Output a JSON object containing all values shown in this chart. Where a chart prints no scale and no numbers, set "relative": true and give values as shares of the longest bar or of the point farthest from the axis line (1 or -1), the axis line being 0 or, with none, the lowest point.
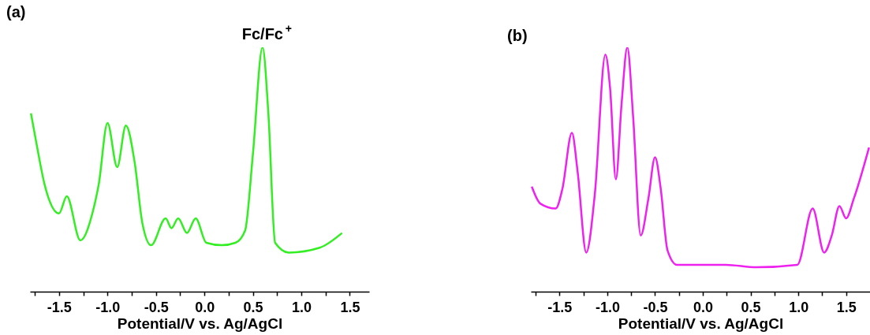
{
  "chart_data": [
    {
      "type": "line",
      "title": "(a)",
      "xlabel": "Potential/V vs. Ag/AgCl",
      "relative": true,
      "xlim": [
        -1.8,
        1.7
      ],
      "xticks": [
        {
          "value": -1.75,
          "label": null
        },
        {
          "value": -1.5,
          "label": "-1.5"
        },
        {
          "value": -1.25,
          "label": null
        },
        {
          "value": -1,
          "label": "-1.0"
        },
        {
          "value": -0.75,
          "label": null
        },
        {
          "value": -0.5,
          "label": "-0.5"
        },
        {
          "value": -0.25,
          "label": null
        },
        {
          "value": 0,
          "label": "0.0"
        },
        {
          "value": 0.25,
          "label": null
        },
        {
          "value": 0.5,
          "label": "0.5"
        },
        {
          "value": 0.75,
          "label": null
        },
        {
          "value": 1,
          "label": "1.0"
        },
        {
          "value": 1.25,
          "label": null
        },
        {
          "value": 1.5,
          "label": "1.5"
        }
      ],
      "annotations": [
        {
          "text": "Fc/Fc$^{+}$",
          "x": 0.6,
          "y": 1.0
        }
      ],
      "series": [
        {
          "color": "#33ee22",
          "x": [
            -1.79,
            -1.73,
            -1.65,
            -1.5,
            -1.42,
            -1.28,
            -1.15,
            -1.09,
            -1.0,
            -0.9,
            -0.81,
            -0.72,
            -0.64,
            -0.55,
            -0.4,
            -0.34,
            -0.27,
            -0.18,
            -0.09,
            0.02,
            0.18,
            0.32,
            0.42,
            0.5,
            0.6,
            0.66,
            0.73,
            0.87,
            1.19,
            1.42
          ],
          "values": [
            0.73,
            0.6,
            0.44,
            0.32,
            0.39,
            0.21,
            0.33,
            0.44,
            0.69,
            0.51,
            0.68,
            0.53,
            0.28,
            0.19,
            0.3,
            0.26,
            0.3,
            0.24,
            0.3,
            0.2,
            0.19,
            0.2,
            0.25,
            0.56,
            1.0,
            0.73,
            0.2,
            0.16,
            0.18,
            0.24
          ]
        }
      ]
    },
    {
      "type": "line",
      "title": "(b)",
      "xlabel": "Potential/V vs. Ag/AgCl",
      "relative": true,
      "xlim": [
        -1.8,
        1.75
      ],
      "xticks": [
        {
          "value": -1.75,
          "label": null
        },
        {
          "value": -1.5,
          "label": "-1.5"
        },
        {
          "value": -1.25,
          "label": null
        },
        {
          "value": -1,
          "label": "-1.0"
        },
        {
          "value": -0.75,
          "label": null
        },
        {
          "value": -0.5,
          "label": "-0.5"
        },
        {
          "value": -0.25,
          "label": null
        },
        {
          "value": 0,
          "label": "0.0"
        },
        {
          "value": 0.25,
          "label": null
        },
        {
          "value": 0.5,
          "label": "0.5"
        },
        {
          "value": 0.75,
          "label": null
        },
        {
          "value": 1,
          "label": "1.0"
        },
        {
          "value": 1.25,
          "label": null
        },
        {
          "value": 1.5,
          "label": "1.5"
        }
      ],
      "series": [
        {
          "color": "#ee22ee",
          "x": [
            -1.79,
            -1.7,
            -1.54,
            -1.47,
            -1.37,
            -1.31,
            -1.22,
            -1.13,
            -1.02,
            -0.97,
            -0.91,
            -0.85,
            -0.79,
            -0.73,
            -0.65,
            -0.57,
            -0.5,
            -0.44,
            -0.37,
            -0.27,
            0.24,
            0.56,
            0.99,
            1.15,
            1.27,
            1.35,
            1.43,
            1.5,
            1.58,
            1.74
          ],
          "values": [
            0.43,
            0.36,
            0.34,
            0.42,
            0.65,
            0.49,
            0.16,
            0.4,
            0.97,
            0.83,
            0.46,
            0.77,
            1.0,
            0.72,
            0.23,
            0.38,
            0.55,
            0.42,
            0.17,
            0.11,
            0.11,
            0.1,
            0.11,
            0.34,
            0.16,
            0.23,
            0.35,
            0.3,
            0.38,
            0.59
          ]
        }
      ]
    }
  ]
}
